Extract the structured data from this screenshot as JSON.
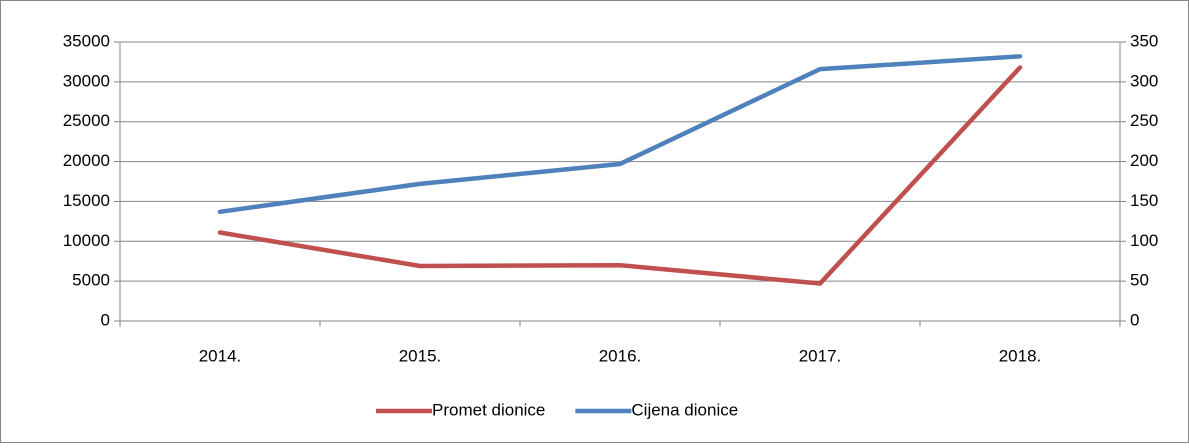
{
  "chart_data": {
    "type": "line",
    "categories": [
      "2014.",
      "2015.",
      "2016.",
      "2017.",
      "2018."
    ],
    "series": [
      {
        "name": "Promet dionice",
        "color": "#c0504d",
        "values": [
          11100,
          6900,
          7000,
          4700,
          31800
        ]
      },
      {
        "name": "Cijena dionice",
        "color": "#4f81bd",
        "values": [
          137,
          172,
          197,
          316,
          332
        ],
        "axis": "y2"
      }
    ],
    "ylim": [
      0,
      35000
    ],
    "yticks": [
      0,
      5000,
      10000,
      15000,
      20000,
      25000,
      30000,
      35000
    ],
    "y2lim": [
      0,
      350
    ],
    "y2ticks": [
      0,
      50,
      100,
      150,
      200,
      250,
      300,
      350
    ],
    "grid": true,
    "legend": "bottom"
  }
}
